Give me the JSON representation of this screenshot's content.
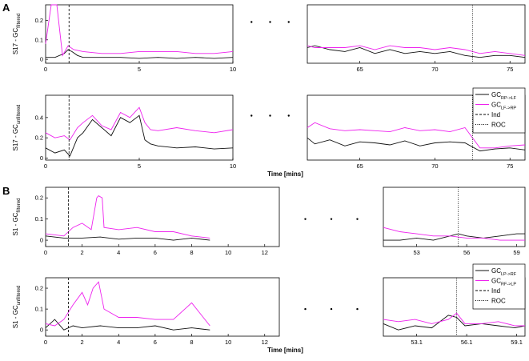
{
  "colors": {
    "series1": "#111111",
    "series2": "#ee22ee",
    "axis": "#000000"
  },
  "figure": {
    "panels": [
      {
        "letter": "A",
        "x_label": "Time [mins]",
        "legend": [
          {
            "main": "GC",
            "sub": "RP->LF",
            "style": "black"
          },
          {
            "main": "GC",
            "sub": "LF->RP",
            "style": "magenta"
          },
          {
            "main": "Ind",
            "style": "dashed"
          },
          {
            "main": "ROC",
            "style": "dotted"
          }
        ],
        "segments": [
          {
            "ticks": [
              0,
              5,
              10
            ],
            "range": [
              0,
              10
            ]
          },
          {
            "ticks": [
              65,
              70,
              75
            ],
            "range": [
              61.5,
              76
            ]
          }
        ],
        "subplots": [
          {
            "ylabel_main": "S17 - GC",
            "ylabel_sub": "filtered",
            "ylim": [
              -0.02,
              0.28
            ],
            "yticks": [
              0,
              0.1,
              0.2
            ],
            "ind_marker": 1.25,
            "roc_marker": 72.5
          },
          {
            "ylabel_main": "S17 - GC",
            "ylabel_sub": "unfiltered",
            "ylim": [
              -0.02,
              0.62
            ],
            "yticks": [
              0,
              0.2,
              0.4
            ],
            "ind_marker": 1.25,
            "roc_marker": 72.5
          }
        ]
      },
      {
        "letter": "B",
        "x_label": "Time [mins]",
        "legend": [
          {
            "main": "GC",
            "sub": "LP->RF",
            "style": "black"
          },
          {
            "main": "GC",
            "sub": "RF->LP",
            "style": "magenta"
          },
          {
            "main": "Ind",
            "style": "dashed"
          },
          {
            "main": "ROC",
            "style": "dotted"
          }
        ],
        "subplots": [
          {
            "ylabel_main": "S1 - GC",
            "ylabel_sub": "filtered",
            "ylim": [
              -0.03,
              0.25
            ],
            "yticks": [
              0,
              0.1,
              0.2
            ],
            "ind_marker": 1.25,
            "roc_marker": 55.5,
            "segments": [
              {
                "ticks": [
                  0,
                  2,
                  4,
                  6,
                  8,
                  10,
                  12
                ],
                "range": [
                  0,
                  12.8
                ]
              },
              {
                "ticks": [
                  53,
                  56,
                  59
                ],
                "range": [
                  51,
                  59.5
                ]
              }
            ]
          },
          {
            "ylabel_main": "S1 - GC",
            "ylabel_sub": "unfiltered",
            "ylim": [
              -0.03,
              0.25
            ],
            "yticks": [
              0,
              0.1,
              0.2
            ],
            "ind_marker": 1.25,
            "roc_marker": 55.5,
            "segments": [
              {
                "ticks": [
                  0,
                  2,
                  4,
                  6,
                  8,
                  10,
                  12
                ],
                "range": [
                  0,
                  12.8
                ]
              },
              {
                "ticks": [
                  53.1,
                  56.1,
                  59.1
                ],
                "range": [
                  51.1,
                  59.6
                ]
              }
            ]
          }
        ]
      }
    ]
  },
  "chart_data": [
    {
      "type": "line",
      "panel": "A-top",
      "ylabel": "S17 - GC filtered",
      "xlabel": "",
      "ylim": [
        -0.02,
        0.28
      ],
      "series": [
        {
          "name": "GC RP->LF",
          "segments": [
            {
              "x": [
                0,
                0.5,
                1,
                1.2,
                1.4,
                1.7,
                2,
                3,
                4,
                5,
                6,
                7,
                8,
                9,
                10
              ],
              "y": [
                0.01,
                0.01,
                0.03,
                0.05,
                0.04,
                0.02,
                0.01,
                0.01,
                0.01,
                0.005,
                0.01,
                0.005,
                0.01,
                0.005,
                0.01
              ]
            },
            {
              "x": [
                61.5,
                62,
                63,
                64,
                65,
                66,
                67,
                68,
                69,
                70,
                71,
                72,
                73,
                74,
                75,
                76
              ],
              "y": [
                0.06,
                0.07,
                0.05,
                0.04,
                0.06,
                0.03,
                0.05,
                0.03,
                0.04,
                0.03,
                0.04,
                0.02,
                0.01,
                0.02,
                0.02,
                0.01
              ]
            }
          ]
        },
        {
          "name": "GC LF->RP",
          "segments": [
            {
              "x": [
                0,
                0.3,
                0.6,
                0.9,
                1.2,
                1.5,
                2,
                3,
                4,
                5,
                6,
                7,
                8,
                9,
                10
              ],
              "y": [
                0.08,
                0.28,
                0.28,
                0.02,
                0.07,
                0.05,
                0.04,
                0.03,
                0.03,
                0.04,
                0.04,
                0.04,
                0.03,
                0.03,
                0.04
              ]
            },
            {
              "x": [
                61.5,
                62,
                63,
                64,
                65,
                66,
                67,
                68,
                69,
                70,
                71,
                72,
                73,
                74,
                75,
                76
              ],
              "y": [
                0.07,
                0.06,
                0.06,
                0.06,
                0.07,
                0.05,
                0.07,
                0.06,
                0.06,
                0.05,
                0.06,
                0.05,
                0.03,
                0.04,
                0.03,
                0.02
              ]
            }
          ]
        }
      ]
    },
    {
      "type": "line",
      "panel": "A-bottom",
      "ylabel": "S17 - GC unfiltered",
      "xlabel": "Time [mins]",
      "ylim": [
        -0.02,
        0.62
      ],
      "series": [
        {
          "name": "GC RP->LF",
          "segments": [
            {
              "x": [
                0,
                0.5,
                1,
                1.3,
                1.7,
                2,
                2.5,
                3,
                3.5,
                4,
                4.5,
                5,
                5.3,
                5.6,
                6,
                7,
                8,
                9,
                10
              ],
              "y": [
                0.1,
                0.05,
                0.08,
                0.02,
                0.2,
                0.25,
                0.38,
                0.3,
                0.22,
                0.4,
                0.35,
                0.42,
                0.18,
                0.14,
                0.12,
                0.1,
                0.11,
                0.09,
                0.1
              ]
            },
            {
              "x": [
                61.5,
                62,
                63,
                64,
                65,
                66,
                67,
                68,
                69,
                70,
                71,
                72,
                73,
                74,
                75,
                76
              ],
              "y": [
                0.2,
                0.14,
                0.18,
                0.12,
                0.16,
                0.15,
                0.13,
                0.17,
                0.12,
                0.15,
                0.16,
                0.15,
                0.07,
                0.09,
                0.1,
                0.08
              ]
            }
          ]
        },
        {
          "name": "GC LF->RP",
          "segments": [
            {
              "x": [
                0,
                0.5,
                1,
                1.3,
                1.7,
                2,
                2.5,
                3,
                3.5,
                4,
                4.5,
                5,
                5.3,
                5.6,
                6,
                7,
                8,
                9,
                10
              ],
              "y": [
                0.25,
                0.2,
                0.22,
                0.18,
                0.3,
                0.35,
                0.42,
                0.32,
                0.28,
                0.45,
                0.4,
                0.5,
                0.35,
                0.28,
                0.27,
                0.3,
                0.27,
                0.25,
                0.28
              ]
            },
            {
              "x": [
                61.5,
                62,
                63,
                64,
                65,
                66,
                67,
                68,
                69,
                70,
                71,
                72,
                73,
                74,
                75,
                76
              ],
              "y": [
                0.3,
                0.35,
                0.29,
                0.27,
                0.28,
                0.27,
                0.26,
                0.3,
                0.27,
                0.28,
                0.26,
                0.3,
                0.1,
                0.1,
                0.12,
                0.13
              ]
            }
          ]
        }
      ]
    },
    {
      "type": "line",
      "panel": "B-top",
      "ylabel": "S1 - GC filtered",
      "xlabel": "",
      "ylim": [
        -0.03,
        0.25
      ],
      "series": [
        {
          "name": "GC LP->RF",
          "segments": [
            {
              "x": [
                0,
                1,
                2,
                3,
                4,
                5,
                6,
                7,
                8,
                9
              ],
              "y": [
                0.02,
                0.01,
                0.01,
                0.015,
                0.005,
                0.01,
                0.01,
                0.0,
                0.01,
                0.0
              ]
            },
            {
              "x": [
                51,
                52,
                53,
                54,
                55,
                55.5,
                56,
                57,
                58,
                59,
                59.5
              ],
              "y": [
                0.0,
                0.0,
                0.01,
                0.0,
                0.02,
                0.03,
                0.02,
                0.01,
                0.02,
                0.03,
                0.03
              ]
            }
          ]
        },
        {
          "name": "GC RF->LP",
          "segments": [
            {
              "x": [
                0,
                1,
                1.5,
                2,
                2.5,
                2.8,
                2.9,
                3.1,
                3.2,
                4,
                5,
                6,
                7,
                8,
                9
              ],
              "y": [
                0.03,
                0.02,
                0.06,
                0.08,
                0.05,
                0.2,
                0.21,
                0.2,
                0.06,
                0.05,
                0.06,
                0.04,
                0.04,
                0.02,
                0.01
              ]
            },
            {
              "x": [
                51,
                52,
                53,
                54,
                55,
                56,
                57,
                58,
                59,
                59.5
              ],
              "y": [
                0.06,
                0.04,
                0.03,
                0.02,
                0.02,
                0.01,
                0.01,
                0.0,
                0.0,
                0.0
              ]
            }
          ]
        }
      ]
    },
    {
      "type": "line",
      "panel": "B-bottom",
      "ylabel": "S1 - GC unfiltered",
      "xlabel": "Time [mins]",
      "ylim": [
        -0.03,
        0.25
      ],
      "series": [
        {
          "name": "GC LP->RF",
          "segments": [
            {
              "x": [
                0,
                0.5,
                1,
                1.5,
                2,
                3,
                4,
                5,
                6,
                7,
                8,
                9
              ],
              "y": [
                0.01,
                0.05,
                0.0,
                0.02,
                0.01,
                0.02,
                0.01,
                0.01,
                0.02,
                0.0,
                0.01,
                0.0
              ]
            },
            {
              "x": [
                51.1,
                52,
                53,
                54,
                55,
                55.5,
                56,
                57,
                58,
                59,
                59.6
              ],
              "y": [
                0.03,
                0.0,
                0.02,
                0.01,
                0.07,
                0.06,
                0.02,
                0.03,
                0.02,
                0.01,
                0.02
              ]
            }
          ]
        },
        {
          "name": "GC RF->LP",
          "segments": [
            {
              "x": [
                0,
                0.5,
                1,
                1.5,
                2,
                2.3,
                2.6,
                2.9,
                3.2,
                4,
                5,
                6,
                7,
                8,
                9
              ],
              "y": [
                0.03,
                0.02,
                0.05,
                0.12,
                0.18,
                0.12,
                0.2,
                0.23,
                0.1,
                0.06,
                0.06,
                0.05,
                0.05,
                0.13,
                0.02
              ]
            },
            {
              "x": [
                51.1,
                52,
                53,
                54,
                55,
                55.5,
                56,
                57,
                58,
                59,
                59.6
              ],
              "y": [
                0.05,
                0.04,
                0.05,
                0.03,
                0.05,
                0.08,
                0.03,
                0.03,
                0.04,
                0.02,
                0.02
              ]
            }
          ]
        }
      ]
    }
  ]
}
